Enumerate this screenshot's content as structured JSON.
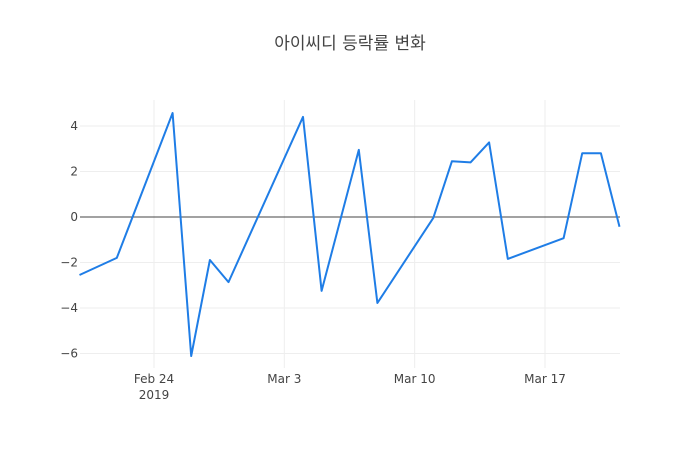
{
  "chart_data": {
    "type": "line",
    "title": "아이씨디 등락률 변화",
    "xlabel": "",
    "ylabel": "",
    "x": [
      "2019-02-20",
      "2019-02-22",
      "2019-02-25",
      "2019-02-26",
      "2019-02-27",
      "2019-02-28",
      "2019-03-04",
      "2019-03-05",
      "2019-03-07",
      "2019-03-08",
      "2019-03-11",
      "2019-03-12",
      "2019-03-13",
      "2019-03-14",
      "2019-03-15",
      "2019-03-18",
      "2019-03-19",
      "2019-03-20",
      "2019-03-21"
    ],
    "series": [
      {
        "name": "등락률",
        "color": "#1f7de6",
        "values": [
          -2.55,
          -1.8,
          4.57,
          -6.11,
          -1.89,
          -2.86,
          4.4,
          -3.25,
          2.95,
          -3.78,
          -0.04,
          2.45,
          2.4,
          3.28,
          -1.84,
          -0.93,
          2.8,
          2.8,
          -0.43
        ]
      }
    ],
    "x_ticks": [
      {
        "date": "2019-02-24",
        "label": "Feb 24",
        "sublabel": "2019"
      },
      {
        "date": "2019-03-03",
        "label": "Mar 3",
        "sublabel": ""
      },
      {
        "date": "2019-03-10",
        "label": "Mar 10",
        "sublabel": ""
      },
      {
        "date": "2019-03-17",
        "label": "Mar 17",
        "sublabel": ""
      }
    ],
    "y_ticks": [
      4,
      2,
      0,
      -2,
      -4,
      -6
    ],
    "y_tick_labels": [
      "4",
      "2",
      "0",
      "−2",
      "−4",
      "−6"
    ],
    "ylim": [
      -6.6,
      5.1
    ],
    "xlim": [
      "2019-02-20",
      "2019-03-21"
    ],
    "grid": true,
    "zero_line": true,
    "legend": false
  },
  "colors": {
    "line": "#1f7de6",
    "grid": "#eeeeee",
    "zero_line": "#444444",
    "text": "#444444"
  }
}
